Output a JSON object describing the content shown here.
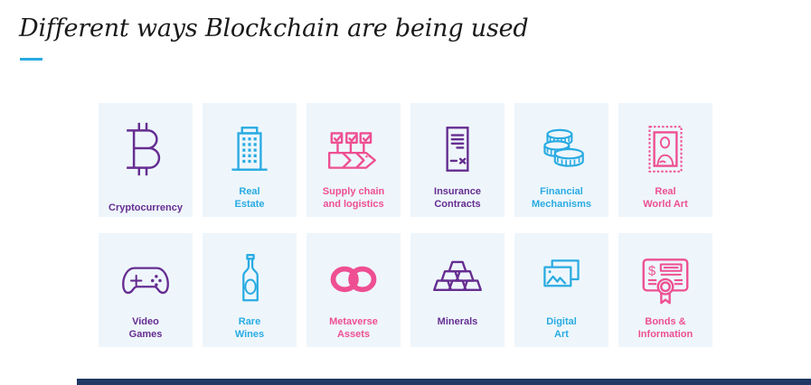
{
  "title": "Different ways Blockchain are being used",
  "colors": {
    "page_bg": "#ffffff",
    "title_text": "#1a1a1a",
    "underline": "#29abe2",
    "card_bg": "#eef6fc",
    "purple": "#662d91",
    "cyan": "#29abe2",
    "pink": "#ee4f92",
    "footer_bar": "#1f3864"
  },
  "cards": [
    {
      "id": "cryptocurrency",
      "label": "Cryptocurrency",
      "icon": "bitcoin-icon",
      "color": "purple"
    },
    {
      "id": "real-estate",
      "label": "Real\nEstate",
      "icon": "building-icon",
      "color": "cyan"
    },
    {
      "id": "supply-chain",
      "label": "Supply chain\nand logistics",
      "icon": "supply-chain-arrows-icon",
      "color": "pink"
    },
    {
      "id": "insurance-contracts",
      "label": "Insurance\nContracts",
      "icon": "contract-document-icon",
      "color": "purple"
    },
    {
      "id": "financial-mechanisms",
      "label": "Financial\nMechanisms",
      "icon": "coins-stack-icon",
      "color": "cyan"
    },
    {
      "id": "real-world-art",
      "label": "Real\nWorld Art",
      "icon": "framed-painting-icon",
      "color": "pink"
    },
    {
      "id": "video-games",
      "label": "Video\nGames",
      "icon": "gamepad-icon",
      "color": "purple"
    },
    {
      "id": "rare-wines",
      "label": "Rare\nWines",
      "icon": "wine-bottle-icon",
      "color": "cyan"
    },
    {
      "id": "metaverse-assets",
      "label": "Metaverse\nAssets",
      "icon": "meta-logo-icon",
      "color": "pink"
    },
    {
      "id": "minerals",
      "label": "Minerals",
      "icon": "gold-ingots-icon",
      "color": "purple"
    },
    {
      "id": "digital-art",
      "label": "Digital\nArt",
      "icon": "photos-icon",
      "color": "cyan"
    },
    {
      "id": "bonds-information",
      "label": "Bonds &\nInformation",
      "icon": "certificate-seal-icon",
      "color": "pink"
    }
  ]
}
